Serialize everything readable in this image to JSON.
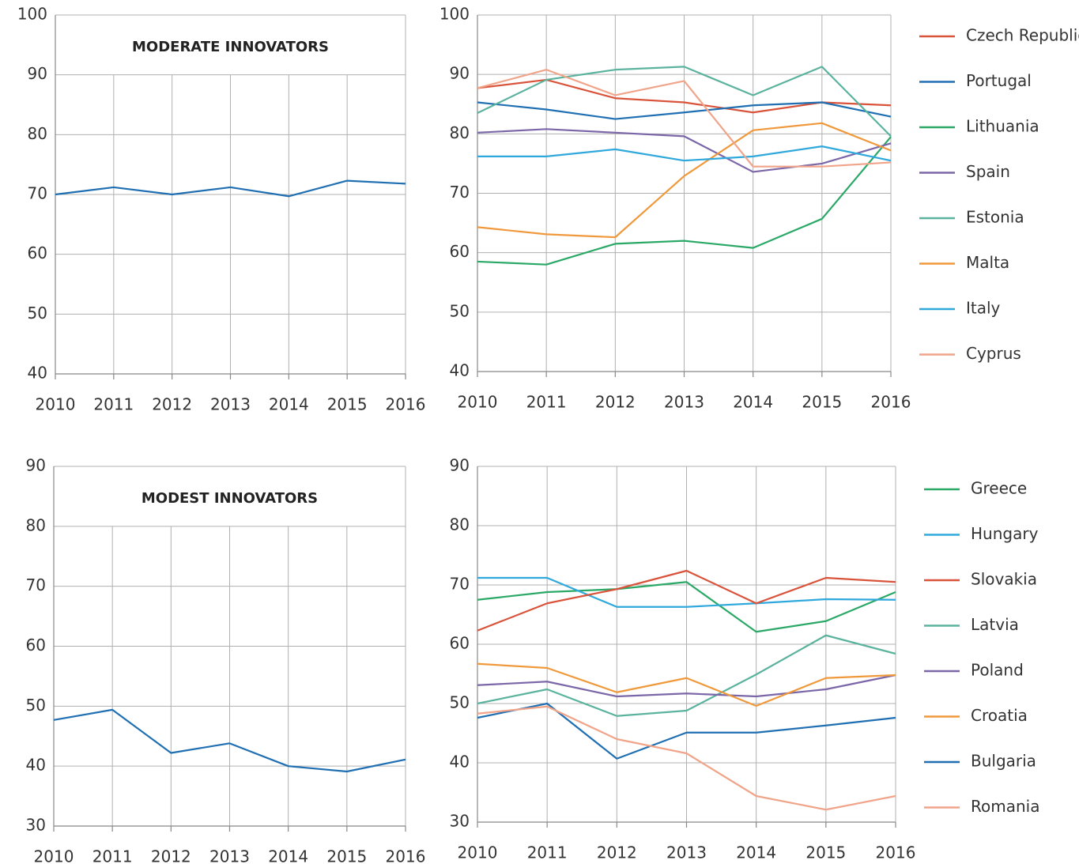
{
  "chart_data": [
    {
      "type": "line",
      "title": "MODERATE INNOVATORS",
      "x": [
        2010,
        2011,
        2012,
        2013,
        2014,
        2015,
        2016
      ],
      "values": [
        70,
        71.2,
        70,
        71.2,
        69.7,
        72.3,
        71.8
      ],
      "color": "#1f6fb2",
      "xlim": [
        2010,
        2016
      ],
      "xticks": [
        2010,
        2011,
        2012,
        2013,
        2014,
        2015,
        2016
      ],
      "ylim": [
        40,
        100
      ],
      "yticks": [
        40,
        50,
        60,
        70,
        80,
        90,
        100
      ],
      "grid": true
    },
    {
      "type": "line",
      "x": [
        2010,
        2011,
        2012,
        2013,
        2014,
        2015,
        2016
      ],
      "series": [
        {
          "name": "Czech Republic",
          "color": "#d9533a",
          "values": [
            87.7,
            89.1,
            86,
            85.3,
            83.6,
            85.3,
            84.8
          ]
        },
        {
          "name": "Portugal",
          "color": "#1f6fb2",
          "values": [
            85.3,
            84.1,
            82.5,
            83.6,
            84.8,
            85.3,
            82.9
          ]
        },
        {
          "name": "Lithuania",
          "color": "#2aa866",
          "values": [
            58.5,
            58,
            61.5,
            62,
            60.8,
            65.7,
            79.5
          ]
        },
        {
          "name": "Spain",
          "color": "#7b67a8",
          "values": [
            80.2,
            80.8,
            80.2,
            79.6,
            73.6,
            75,
            78.4
          ]
        },
        {
          "name": "Estonia",
          "color": "#5bb39e",
          "values": [
            83.5,
            89.1,
            90.8,
            91.3,
            86.5,
            91.3,
            79.6
          ]
        },
        {
          "name": "Malta",
          "color": "#f0993c",
          "values": [
            64.3,
            63.1,
            62.6,
            72.9,
            80.6,
            81.8,
            77.2
          ]
        },
        {
          "name": "Italy",
          "color": "#2fa8dc",
          "values": [
            76.2,
            76.2,
            77.4,
            75.5,
            76.2,
            77.9,
            75.5
          ]
        },
        {
          "name": "Cyprus",
          "color": "#f0a48a",
          "values": [
            87.7,
            90.8,
            86.5,
            88.9,
            74.5,
            74.5,
            75.2
          ]
        }
      ],
      "xlim": [
        2010,
        2016
      ],
      "xticks": [
        2010,
        2011,
        2012,
        2013,
        2014,
        2015,
        2016
      ],
      "ylim": [
        40,
        100
      ],
      "yticks": [
        40,
        50,
        60,
        70,
        80,
        90,
        100
      ],
      "grid": true,
      "legend": "right"
    },
    {
      "type": "line",
      "title": "MODEST INNOVATORS",
      "x": [
        2010,
        2011,
        2012,
        2013,
        2014,
        2015,
        2016
      ],
      "values": [
        47.7,
        49.4,
        42.2,
        43.8,
        40,
        39.1,
        41.1
      ],
      "color": "#1f6fb2",
      "xlim": [
        2010,
        2016
      ],
      "xticks": [
        2010,
        2011,
        2012,
        2013,
        2014,
        2015,
        2016
      ],
      "ylim": [
        30,
        90
      ],
      "yticks": [
        30,
        40,
        50,
        60,
        70,
        80,
        90
      ],
      "grid": true
    },
    {
      "type": "line",
      "x": [
        2010,
        2011,
        2012,
        2013,
        2014,
        2015,
        2016
      ],
      "series": [
        {
          "name": "Greece",
          "color": "#2aa866",
          "values": [
            67.5,
            68.8,
            69.3,
            70.5,
            62.1,
            63.9,
            68.8
          ]
        },
        {
          "name": "Hungary",
          "color": "#2fa8dc",
          "values": [
            71.2,
            71.2,
            66.3,
            66.3,
            66.9,
            67.6,
            67.5
          ]
        },
        {
          "name": "Slovakia",
          "color": "#d9533a",
          "values": [
            62.3,
            66.9,
            69.3,
            72.4,
            66.9,
            71.2,
            70.5
          ]
        },
        {
          "name": "Latvia",
          "color": "#5bb39e",
          "values": [
            50,
            52.4,
            47.9,
            48.8,
            54.9,
            61.5,
            58.4
          ]
        },
        {
          "name": "Poland",
          "color": "#7b67a8",
          "values": [
            53.1,
            53.7,
            51.2,
            51.7,
            51.2,
            52.4,
            54.8
          ]
        },
        {
          "name": "Croatia",
          "color": "#f0993c",
          "values": [
            56.7,
            56,
            51.9,
            54.3,
            49.6,
            54.3,
            54.8
          ]
        },
        {
          "name": "Bulgaria",
          "color": "#1f6fb2",
          "values": [
            47.6,
            50,
            40.7,
            45.1,
            45.1,
            46.3,
            47.6
          ]
        },
        {
          "name": "Romania",
          "color": "#f0a48a",
          "values": [
            48.3,
            49.5,
            44,
            41.6,
            34.4,
            32.1,
            34.4
          ]
        }
      ],
      "xlim": [
        2010,
        2016
      ],
      "xticks": [
        2010,
        2011,
        2012,
        2013,
        2014,
        2015,
        2016
      ],
      "ylim": [
        30,
        90
      ],
      "yticks": [
        30,
        40,
        50,
        60,
        70,
        80,
        90
      ],
      "grid": true,
      "legend": "right"
    }
  ]
}
